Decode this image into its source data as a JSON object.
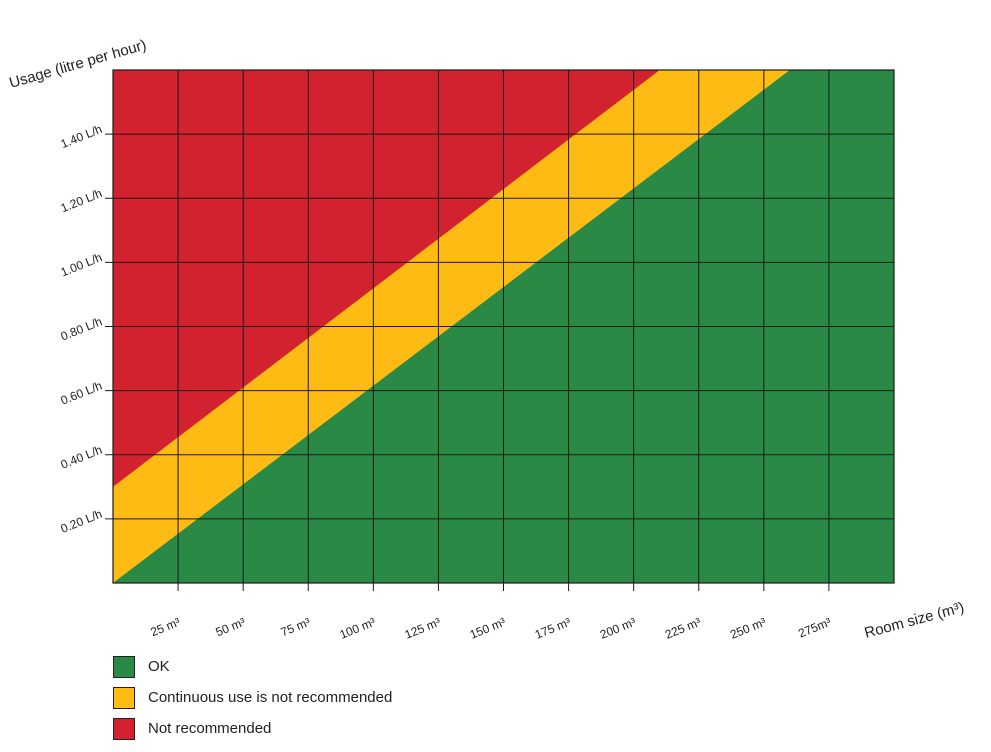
{
  "chart_data": {
    "type": "area",
    "title": "",
    "xlabel": "Room size (m³)",
    "ylabel": "Usage (litre per hour)",
    "x_unit": "m³",
    "y_unit": "L/h",
    "xlim": [
      0,
      300
    ],
    "ylim": [
      0,
      1.6
    ],
    "x_ticks": [
      25,
      50,
      75,
      100,
      125,
      150,
      175,
      200,
      225,
      250,
      275
    ],
    "x_tick_labels": [
      "25 m³",
      "50 m³",
      "75 m³",
      "100 m³",
      "125 m³",
      "150 m³",
      "175 m³",
      "200 m³",
      "225 m³",
      "250 m³",
      "275m³"
    ],
    "y_ticks": [
      0.2,
      0.4,
      0.6,
      0.8,
      1.0,
      1.2,
      1.4
    ],
    "y_tick_labels": [
      "0.20 L/h",
      "0.40 L/h",
      "0.60 L/h",
      "0.80 L/h",
      "1.00 L/h",
      "1.20 L/h",
      "1.40 L/h"
    ],
    "grid": true,
    "zones": [
      {
        "name": "OK",
        "color": "#2a8a45"
      },
      {
        "name": "Continuous use is not recommended",
        "color": "#fdbb14",
        "lower_boundary": [
          [
            0,
            0
          ],
          [
            260,
            1.6
          ]
        ]
      },
      {
        "name": "Not recommended",
        "color": "#d3222f",
        "lower_boundary": [
          [
            0,
            0.3
          ],
          [
            210,
            1.6
          ]
        ]
      }
    ],
    "legend_placement": "bottom-left"
  },
  "legend": [
    {
      "label": "OK",
      "color": "#2a8a45"
    },
    {
      "label": "Continuous use is not recommended",
      "color": "#fdbb14"
    },
    {
      "label": "Not recommended",
      "color": "#d3222f"
    }
  ]
}
